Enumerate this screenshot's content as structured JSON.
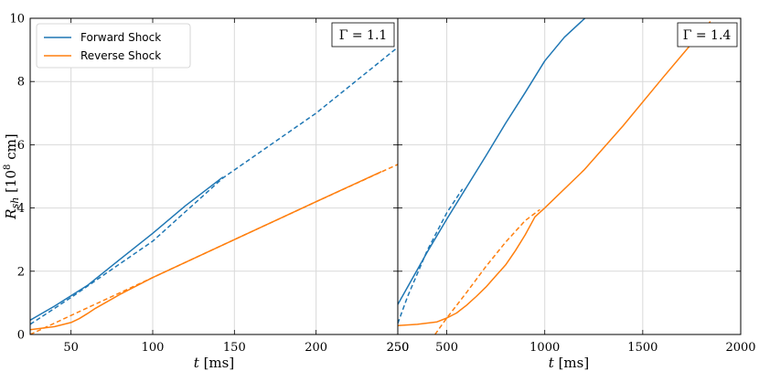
{
  "chart_data": {
    "type": "line",
    "ylabel_parts": {
      "main": "R",
      "sub": "sh",
      "unit_pre": " [10",
      "unit_sup": "8",
      "unit_post": " cm]"
    },
    "ylim": [
      0,
      10
    ],
    "yticks": [
      0,
      2,
      4,
      6,
      8,
      10
    ],
    "grid": true,
    "legend": {
      "placement": "top-left",
      "entries": [
        {
          "label": "Forward Shock",
          "color": "#1f77b4"
        },
        {
          "label": "Reverse Shock",
          "color": "#ff7f0e"
        }
      ]
    },
    "panels": [
      {
        "annotation": "Γ = 1.1",
        "xlabel_parts": {
          "var": "t",
          "unit": " [ms]"
        },
        "xlim": [
          25,
          250
        ],
        "xticks": [
          50,
          100,
          150,
          200,
          250
        ],
        "series": [
          {
            "name": "Forward Shock",
            "color": "#1f77b4",
            "style": "solid",
            "x": [
              25,
              40,
              60,
              80,
              100,
              120,
              143
            ],
            "y": [
              0.45,
              0.9,
              1.55,
              2.38,
              3.2,
              4.07,
              4.98
            ]
          },
          {
            "style": "dashed",
            "color": "#1f77b4",
            "x": [
              25,
              50,
              100,
              143,
              200,
              250
            ],
            "y": [
              0.32,
              1.17,
              2.95,
              4.95,
              7.0,
              9.08
            ]
          },
          {
            "name": "Reverse Shock",
            "color": "#ff7f0e",
            "style": "solid",
            "x": [
              25,
              40,
              50,
              55,
              60,
              65,
              80,
              100,
              150,
              200,
              240
            ],
            "y": [
              0.15,
              0.25,
              0.38,
              0.5,
              0.66,
              0.83,
              1.27,
              1.8,
              3.0,
              4.2,
              5.15
            ]
          },
          {
            "style": "dashed",
            "color": "#ff7f0e",
            "x": [
              25,
              60,
              100,
              150,
              200,
              250
            ],
            "y": [
              0.0,
              0.84,
              1.8,
              3.0,
              4.2,
              5.38
            ]
          }
        ]
      },
      {
        "annotation": "Γ = 1.4",
        "xlabel_parts": {
          "var": "t",
          "unit": " [ms]"
        },
        "xlim": [
          250,
          2000
        ],
        "xticks": [
          250,
          500,
          1000,
          1500,
          2000
        ],
        "series": [
          {
            "name": "Forward Shock",
            "color": "#1f77b4",
            "style": "solid",
            "x": [
              250,
              300,
              400,
              500,
              600,
              700,
              800,
              900,
              1000,
              1100,
              1205
            ],
            "y": [
              0.95,
              1.5,
              2.6,
              3.65,
              4.65,
              5.65,
              6.68,
              7.65,
              8.65,
              9.4,
              10.0
            ]
          },
          {
            "style": "dashed",
            "color": "#1f77b4",
            "x": [
              250,
              300,
              400,
              500,
              580
            ],
            "y": [
              0.35,
              1.2,
              2.65,
              3.85,
              4.6
            ]
          },
          {
            "name": "Reverse Shock",
            "color": "#ff7f0e",
            "style": "solid",
            "x": [
              250,
              350,
              450,
              500,
              550,
              600,
              650,
              700,
              750,
              800,
              850,
              900,
              950,
              1000,
              1200,
              1400,
              1600,
              1845
            ],
            "y": [
              0.28,
              0.32,
              0.4,
              0.52,
              0.68,
              0.92,
              1.2,
              1.5,
              1.85,
              2.2,
              2.65,
              3.15,
              3.72,
              4.0,
              5.2,
              6.6,
              8.1,
              9.9
            ]
          },
          {
            "style": "dashed",
            "color": "#ff7f0e",
            "x": [
              440,
              500,
              600,
              700,
              800,
              900,
              975
            ],
            "y": [
              0.0,
              0.52,
              1.32,
              2.15,
              2.92,
              3.6,
              3.95
            ]
          }
        ]
      }
    ]
  }
}
